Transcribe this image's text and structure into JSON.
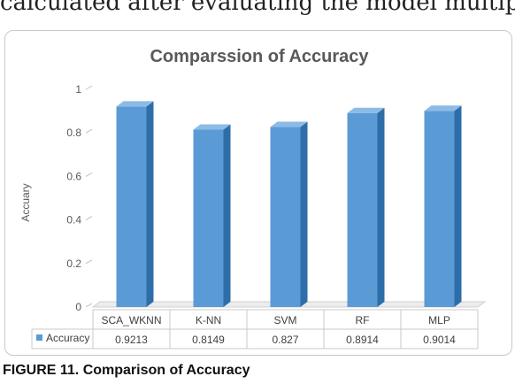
{
  "page": {
    "top_text": "calculated after evaluating the model multiple times.",
    "caption": "FIGURE 11. Comparison of Accuracy"
  },
  "chart_data": {
    "type": "bar",
    "title": "Comparssion of Accuracy",
    "xlabel": "",
    "ylabel": "Accuary",
    "categories": [
      "SCA_WKNN",
      "K-NN",
      "SVM",
      "RF",
      "MLP"
    ],
    "series": [
      {
        "name": "Accuracy",
        "values": [
          0.9213,
          0.8149,
          0.827,
          0.8914,
          0.9014
        ],
        "color": "#5b9bd5"
      }
    ],
    "value_labels": [
      "0.9213",
      "0.8149",
      "0.827",
      "0.8914",
      "0.9014"
    ],
    "ylim": [
      0,
      1
    ],
    "y_ticks": [
      0,
      0.2,
      0.4,
      0.6,
      0.8,
      1
    ],
    "y_tick_labels": [
      "0",
      "0.2",
      "0.4",
      "0.6",
      "0.8",
      "1"
    ],
    "grid": false,
    "bar_style": "3d-column",
    "legend_placement": "data-table-left"
  }
}
